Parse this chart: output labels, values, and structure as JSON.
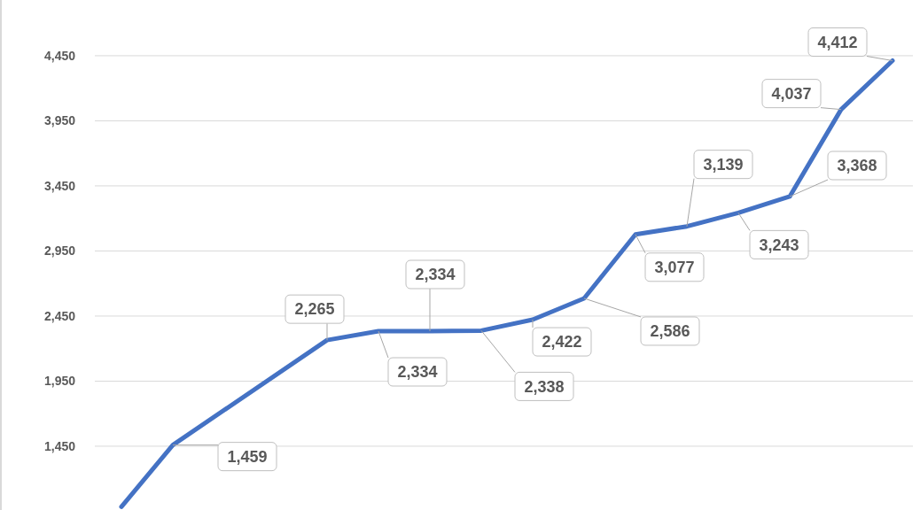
{
  "chart_data": {
    "type": "line",
    "categories": [
      null,
      null,
      null,
      null,
      null,
      null,
      null,
      null,
      null,
      null,
      null,
      null,
      null,
      null,
      null,
      null
    ],
    "tick_labels": "y",
    "series": [
      {
        "color": "#4472c4",
        "values": [
          985,
          1459,
          null,
          null,
          2265,
          2334,
          2334,
          2338,
          2422,
          2586,
          3077,
          3139,
          3243,
          3368,
          4037,
          4412
        ],
        "value_labels": [
          null,
          "1,459",
          null,
          null,
          "2,265",
          "2,334",
          "2,334",
          "2,338",
          "2,422",
          "2,586",
          "3,077",
          "3,139",
          "3,243",
          "3,368",
          "4,037",
          "4,412"
        ]
      }
    ],
    "ylim": [
      960,
      4878
    ],
    "yticks": [
      {
        "value": 1450,
        "label": "1,450"
      },
      {
        "value": 1950,
        "label": "1,950"
      },
      {
        "value": 2450,
        "label": "2,450"
      },
      {
        "value": 2950,
        "label": "2,950"
      },
      {
        "value": 3450,
        "label": "3,450"
      },
      {
        "value": 3950,
        "label": "3,950"
      },
      {
        "value": 4450,
        "label": "4,450"
      }
    ],
    "grid": "y",
    "marker": "none",
    "line_style": "solid"
  }
}
